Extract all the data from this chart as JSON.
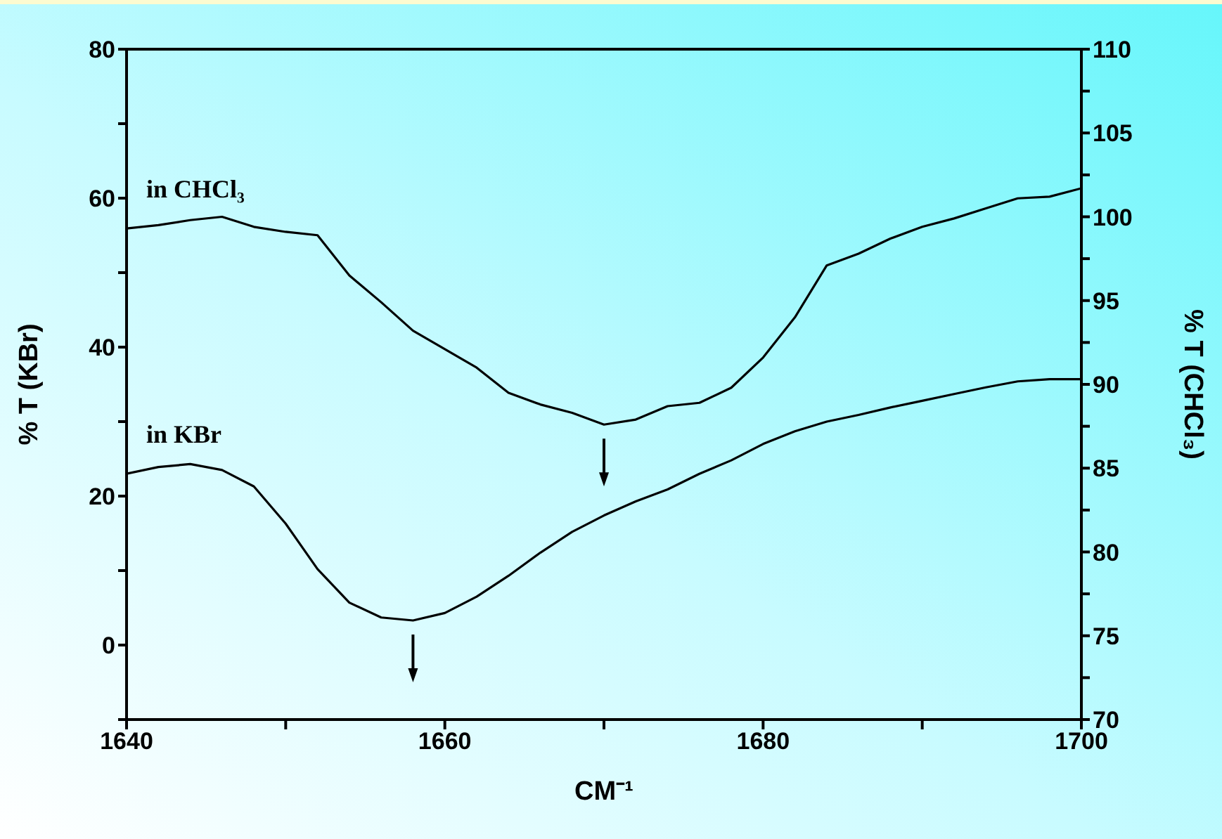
{
  "chart_data": {
    "type": "line",
    "xlabel": "CM⁻¹",
    "ylabel": "% T (KBr)",
    "y2label": "% T (CHCl₃)",
    "x": [
      1640,
      1642,
      1644,
      1646,
      1648,
      1650,
      1652,
      1654,
      1656,
      1658,
      1660,
      1662,
      1664,
      1666,
      1668,
      1670,
      1672,
      1674,
      1676,
      1678,
      1680,
      1682,
      1684,
      1686,
      1688,
      1690,
      1692,
      1694,
      1696,
      1698,
      1700
    ],
    "series": [
      {
        "name": "in CHCl₃",
        "color": "#000000",
        "axis": "y2",
        "values": [
          99.3,
          99.5,
          99.8,
          100.0,
          99.4,
          99.1,
          98.9,
          96.5,
          94.9,
          93.2,
          92.1,
          91.0,
          89.5,
          88.8,
          88.3,
          87.6,
          87.9,
          88.7,
          88.9,
          89.8,
          91.6,
          94.0,
          97.1,
          97.8,
          98.7,
          99.4,
          99.9,
          100.5,
          101.1,
          101.2,
          101.7
        ]
      },
      {
        "name": "in KBr",
        "color": "#000000",
        "values": [
          23.0,
          23.9,
          24.3,
          23.5,
          21.3,
          16.3,
          10.2,
          5.7,
          3.7,
          3.3,
          4.3,
          6.5,
          9.3,
          12.4,
          15.2,
          17.4,
          19.3,
          20.9,
          23.0,
          24.8,
          27.0,
          28.7,
          30.0,
          30.9,
          31.9,
          32.8,
          33.7,
          34.6,
          35.4,
          35.7,
          35.7
        ]
      }
    ],
    "xlim": [
      1640,
      1700
    ],
    "xticks": [
      1640,
      {
        "value": 1650,
        "label": null
      },
      1660,
      {
        "value": 1670,
        "label": null
      },
      1680,
      {
        "value": 1690,
        "label": null
      },
      1700
    ],
    "ylim": [
      -10,
      80
    ],
    "yticks": [
      {
        "value": -10,
        "label": null
      },
      0,
      {
        "value": 10,
        "label": null
      },
      20,
      {
        "value": 30,
        "label": null
      },
      40,
      {
        "value": 50,
        "label": null
      },
      60,
      {
        "value": 70,
        "label": null
      },
      80
    ],
    "y2lim": [
      70,
      110
    ],
    "y2ticks": [
      70,
      {
        "value": 72.5,
        "label": null
      },
      75,
      {
        "value": 77.5,
        "label": null
      },
      80,
      {
        "value": 82.5,
        "label": null
      },
      85,
      {
        "value": 87.5,
        "label": null
      },
      90,
      {
        "value": 92.5,
        "label": null
      },
      95,
      {
        "value": 97.5,
        "label": null
      },
      100,
      {
        "value": 102.5,
        "label": null
      },
      105,
      {
        "value": 107.5,
        "label": null
      },
      110
    ],
    "marker": "none",
    "line_style": "solid"
  }
}
